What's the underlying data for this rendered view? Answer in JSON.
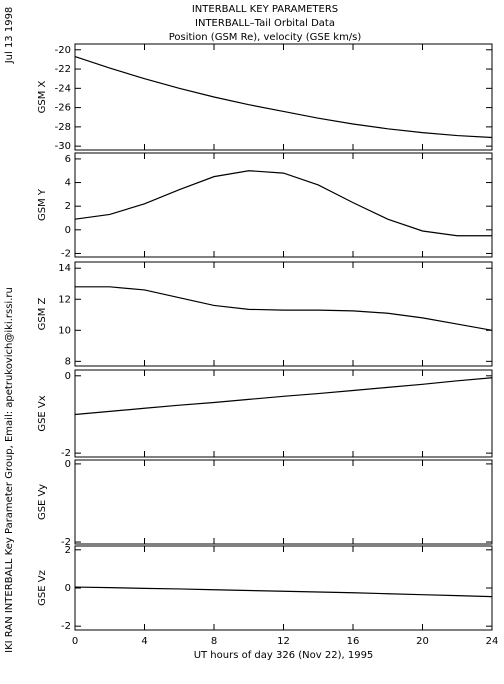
{
  "header": {
    "title_lines": [
      "INTERBALL KEY PARAMETERS",
      "INTERBALL–Tail Orbital Data",
      "Position (GSM Re), velocity (GSE km/s)"
    ],
    "date": "Jul 13 1998",
    "credit": "IKI RAN INTERBALL Key Parameter Group, Email: apetrukovich@iki.rssi.ru"
  },
  "chart_data": [
    {
      "type": "line",
      "ylabel": "GSM X",
      "x": [
        0,
        2,
        4,
        6,
        8,
        10,
        12,
        14,
        16,
        18,
        20,
        22,
        24
      ],
      "values": [
        -20.7,
        -21.9,
        -23.0,
        -24.0,
        -24.9,
        -25.7,
        -26.4,
        -27.1,
        -27.7,
        -28.2,
        -28.6,
        -28.9,
        -29.1
      ],
      "color": "#000000",
      "xlim": [
        0,
        24
      ],
      "xticks": [
        0,
        4,
        8,
        12,
        16,
        20,
        24
      ],
      "ylim": [
        -30.4,
        -19.4
      ],
      "yticks": [
        -30,
        -28,
        -26,
        -24,
        -22,
        -20
      ]
    },
    {
      "type": "line",
      "ylabel": "GSM Y",
      "x": [
        0,
        2,
        4,
        6,
        8,
        10,
        12,
        14,
        16,
        18,
        20,
        22,
        24
      ],
      "values": [
        0.9,
        1.3,
        2.2,
        3.4,
        4.5,
        5.0,
        4.8,
        3.8,
        2.3,
        0.9,
        -0.1,
        -0.5,
        -0.5
      ],
      "color": "#000000",
      "xlim": [
        0,
        24
      ],
      "xticks": [
        0,
        4,
        8,
        12,
        16,
        20,
        24
      ],
      "ylim": [
        -2.3,
        6.5
      ],
      "yticks": [
        -2,
        0,
        2,
        4,
        6
      ]
    },
    {
      "type": "line",
      "ylabel": "GSM Z",
      "x": [
        0,
        2,
        4,
        6,
        8,
        10,
        12,
        14,
        16,
        18,
        20,
        22,
        24
      ],
      "values": [
        12.8,
        12.8,
        12.6,
        12.1,
        11.6,
        11.35,
        11.3,
        11.3,
        11.25,
        11.1,
        10.8,
        10.4,
        10.0
      ],
      "color": "#000000",
      "xlim": [
        0,
        24
      ],
      "xticks": [
        0,
        4,
        8,
        12,
        16,
        20,
        24
      ],
      "ylim": [
        7.7,
        14.4
      ],
      "yticks": [
        8,
        10,
        12,
        14
      ]
    },
    {
      "type": "line",
      "ylabel": "GSE Vx",
      "x": [
        0,
        2,
        4,
        6,
        8,
        10,
        12,
        14,
        16,
        18,
        20,
        22,
        24
      ],
      "values": [
        -1.0,
        -0.92,
        -0.84,
        -0.76,
        -0.69,
        -0.61,
        -0.53,
        -0.46,
        -0.38,
        -0.3,
        -0.22,
        -0.13,
        -0.05
      ],
      "color": "#000000",
      "xlim": [
        0,
        24
      ],
      "xticks": [
        0,
        4,
        8,
        12,
        16,
        20,
        24
      ],
      "ylim": [
        -2.1,
        0.15
      ],
      "yticks": [
        -2,
        0
      ]
    },
    {
      "type": "line",
      "ylabel": "GSE Vy",
      "x": [
        0,
        2,
        4,
        6,
        8,
        10,
        12,
        14,
        16,
        18,
        20,
        22,
        24
      ],
      "values": [
        null,
        null,
        null,
        null,
        null,
        null,
        null,
        null,
        null,
        null,
        null,
        null,
        null
      ],
      "color": "#000000",
      "xlim": [
        0,
        24
      ],
      "xticks": [
        0,
        4,
        8,
        12,
        16,
        20,
        24
      ],
      "ylim": [
        -2.05,
        0.1
      ],
      "yticks": [
        -2,
        0
      ]
    },
    {
      "type": "line",
      "ylabel": "GSE Vz",
      "xlabel": "UT hours of day 326 (Nov 22), 1995",
      "x": [
        0,
        2,
        4,
        6,
        8,
        10,
        12,
        14,
        16,
        18,
        20,
        22,
        24
      ],
      "values": [
        0.05,
        0.02,
        -0.02,
        -0.05,
        -0.09,
        -0.13,
        -0.17,
        -0.21,
        -0.25,
        -0.3,
        -0.35,
        -0.4,
        -0.45
      ],
      "color": "#000000",
      "xlim": [
        0,
        24
      ],
      "xticks": [
        0,
        4,
        8,
        12,
        16,
        20,
        24
      ],
      "ylim": [
        -2.2,
        2.2
      ],
      "yticks": [
        -2,
        0,
        2
      ]
    }
  ]
}
